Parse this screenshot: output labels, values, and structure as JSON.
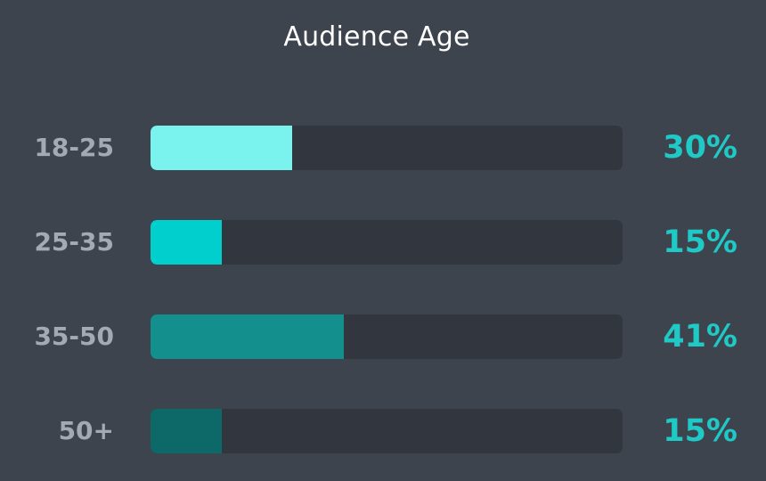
{
  "chart_data": {
    "type": "bar",
    "orientation": "horizontal",
    "title": "Audience Age",
    "categories": [
      "18-25",
      "25-35",
      "35-50",
      "50+"
    ],
    "values": [
      30,
      15,
      41,
      15
    ],
    "value_labels": [
      "30%",
      "15%",
      "41%",
      "15%"
    ],
    "unit": "%",
    "xlim": [
      0,
      100
    ],
    "grid": false,
    "legend": "none",
    "bar_colors": [
      "#7af2ee",
      "#00cfce",
      "#13908e",
      "#0d6968"
    ]
  },
  "colors": {
    "background": "#3e444e",
    "track": "#32363f",
    "label_text": "#a4a9b3",
    "value_text": "#1fc9c6",
    "title_text": "#ffffff"
  }
}
